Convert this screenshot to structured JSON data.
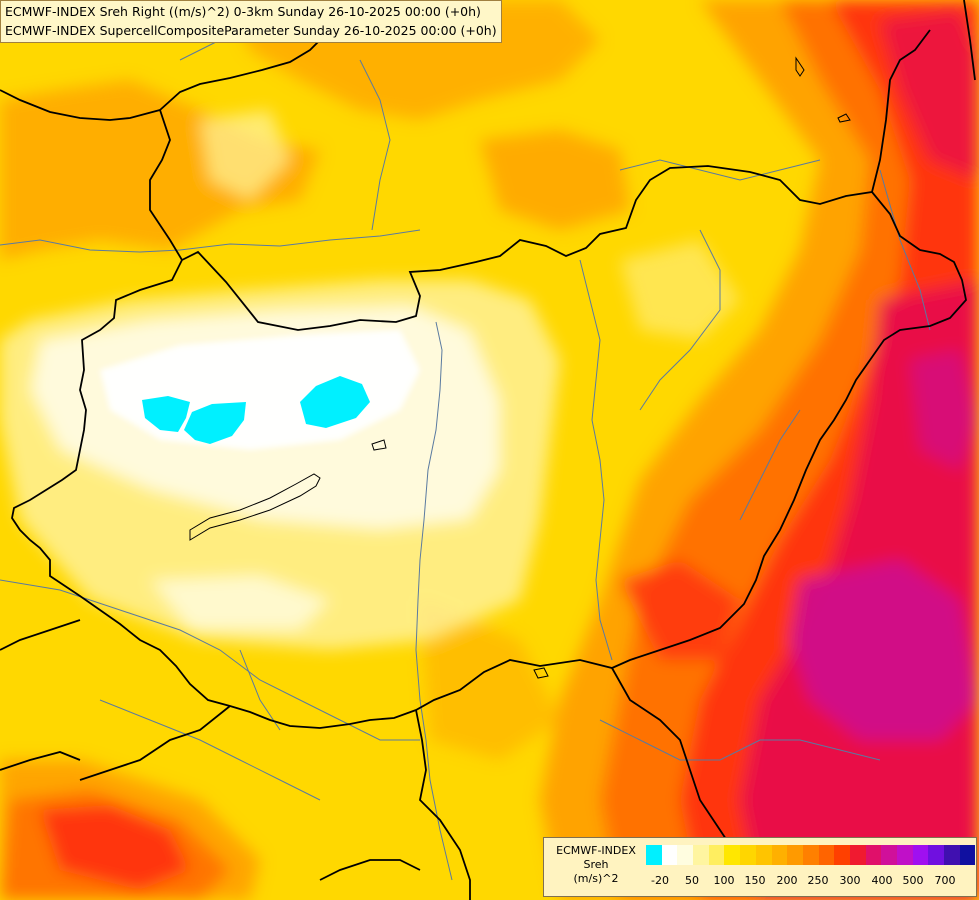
{
  "title": {
    "line1": "ECMWF-INDEX Sreh Right ((m/s)^2) 0-3km Sunday 26-10-2025 00:00 (+0h)",
    "line2": "ECMWF-INDEX SupercellCompositeParameter Sunday 26-10-2025 00:00 (+0h)"
  },
  "legend": {
    "caption_line1": "ECMWF-INDEX",
    "caption_line2": "Sreh",
    "caption_line3": "(m/s)^2",
    "colors": [
      "#00f0ff",
      "#ffffff",
      "#fffde0",
      "#fff5a0",
      "#ffee60",
      "#ffe700",
      "#ffd600",
      "#ffc400",
      "#ffb000",
      "#ff9a00",
      "#ff8000",
      "#ff6400",
      "#ff4000",
      "#f01a30",
      "#e0106a",
      "#d0109a",
      "#c010c8",
      "#a010f0",
      "#7010e0",
      "#4010b0",
      "#1010a0"
    ],
    "ticks": [
      "-20",
      "50",
      "100",
      "150",
      "200",
      "250",
      "300",
      "400",
      "500",
      "700"
    ]
  },
  "map": {
    "colors": {
      "base": "#ffd800",
      "light_yellow": "#fff3a0",
      "pale": "#fffbe0",
      "white": "#ffffff",
      "cyan": "#00f0ff",
      "orange": "#ffa000",
      "dark_orange": "#ff7000",
      "red": "#ff3010",
      "crimson": "#e8104a",
      "magenta": "#d0108a",
      "purple": "#b010c0",
      "border": "#000000",
      "river": "#5a7aa0"
    }
  }
}
